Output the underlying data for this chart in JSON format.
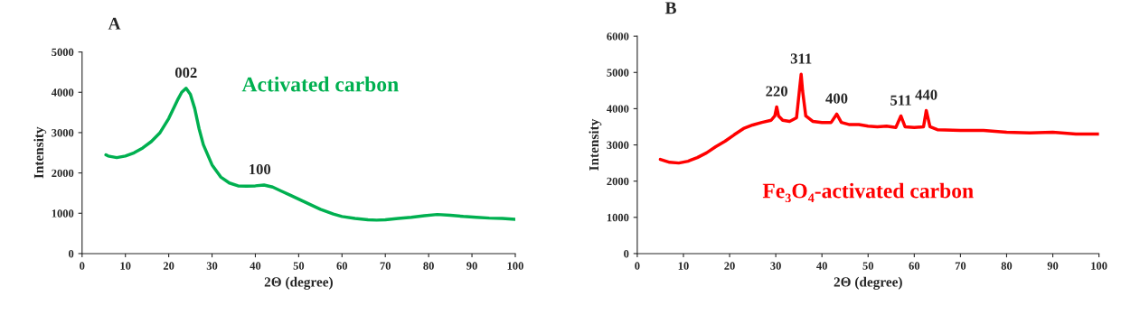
{
  "chart_data": [
    {
      "type": "line",
      "title": "A",
      "xlabel": "2Θ (degree)",
      "ylabel": "Intensity",
      "x": [
        5.5,
        6,
        8,
        10,
        12,
        14,
        16,
        18,
        20,
        22,
        23,
        24,
        25,
        26,
        27,
        28,
        30,
        32,
        34,
        36,
        38,
        40,
        42,
        44,
        46,
        48,
        50,
        52,
        55,
        58,
        60,
        63,
        66,
        68,
        70,
        73,
        76,
        79,
        82,
        85,
        88,
        91,
        94,
        97,
        100
      ],
      "series": [
        {
          "color": "#00b050",
          "values": [
            2450,
            2420,
            2380,
            2420,
            2500,
            2620,
            2780,
            3000,
            3350,
            3800,
            4000,
            4100,
            3950,
            3600,
            3100,
            2700,
            2200,
            1900,
            1750,
            1680,
            1670,
            1680,
            1700,
            1650,
            1550,
            1450,
            1350,
            1250,
            1100,
            980,
            920,
            870,
            840,
            830,
            840,
            870,
            900,
            940,
            970,
            950,
            920,
            900,
            880,
            870,
            850
          ]
        }
      ],
      "xlim": [
        0,
        100
      ],
      "xticks": [
        0,
        10,
        20,
        30,
        40,
        50,
        60,
        70,
        80,
        90,
        100
      ],
      "ylim": [
        0,
        5000
      ],
      "yticks": [
        0,
        1000,
        2000,
        3000,
        4000,
        5000
      ],
      "annotations": [
        {
          "text": "002",
          "x": 24,
          "y": 4100
        },
        {
          "text": "100",
          "x": 41,
          "y": 1700
        },
        "Activated carbon"
      ]
    },
    {
      "type": "line",
      "title": "B",
      "xlabel": "2Θ (degree)",
      "ylabel": "Intensity",
      "x": [
        5,
        7,
        9,
        11,
        13,
        15,
        17,
        19,
        21,
        23,
        25,
        27,
        29,
        29.8,
        30.2,
        30.6,
        31.5,
        33,
        34.5,
        35.2,
        35.5,
        35.8,
        36.5,
        38,
        40,
        42,
        43.2,
        44.2,
        46,
        48,
        50,
        52,
        54,
        56,
        57.1,
        58,
        60,
        62,
        62.6,
        63.4,
        65,
        70,
        75,
        80,
        85,
        90,
        95,
        100
      ],
      "series": [
        {
          "color": "#ff0000",
          "values": [
            2600,
            2520,
            2500,
            2550,
            2650,
            2780,
            2950,
            3100,
            3280,
            3450,
            3550,
            3620,
            3680,
            3800,
            4050,
            3800,
            3680,
            3650,
            3750,
            4600,
            4950,
            4500,
            3800,
            3650,
            3620,
            3620,
            3850,
            3620,
            3560,
            3560,
            3520,
            3500,
            3520,
            3480,
            3800,
            3500,
            3480,
            3500,
            3950,
            3500,
            3420,
            3400,
            3400,
            3350,
            3330,
            3350,
            3300,
            3300
          ]
        }
      ],
      "xlim": [
        0,
        100
      ],
      "xticks": [
        0,
        10,
        20,
        30,
        40,
        50,
        60,
        70,
        80,
        90,
        100
      ],
      "ylim": [
        0,
        6000
      ],
      "yticks": [
        0,
        1000,
        2000,
        3000,
        4000,
        5000,
        6000
      ],
      "annotations": [
        {
          "text": "220",
          "x": 30.2,
          "y": 4050
        },
        {
          "text": "311",
          "x": 35.5,
          "y": 4950
        },
        {
          "text": "400",
          "x": 43.2,
          "y": 3850
        },
        {
          "text": "511",
          "x": 57.1,
          "y": 3800
        },
        {
          "text": "440",
          "x": 62.6,
          "y": 3950
        },
        "Fe₃O₄-activated carbon"
      ]
    }
  ]
}
